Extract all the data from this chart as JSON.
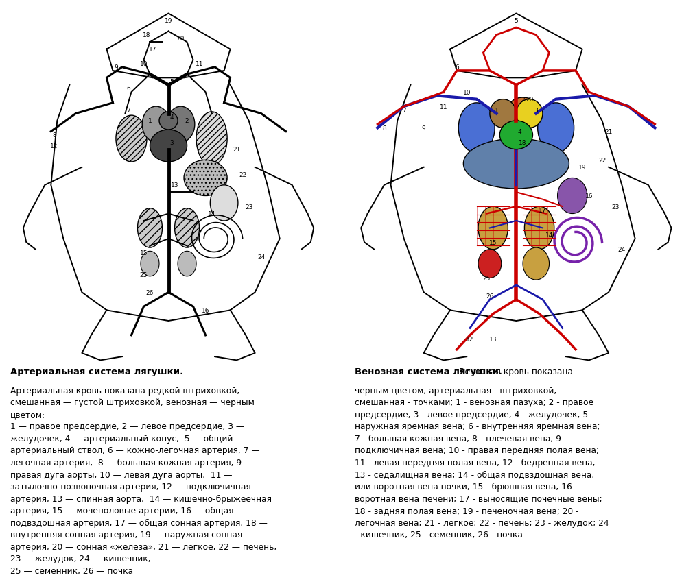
{
  "bg_color": "#ffffff",
  "left_title_bold": "Артериальная система лягушки.",
  "left_text_normal": "Артериальная кровь показана редкой штриховкой,\nсмешанная — густой штриховкой, венозная — черным\nцветом:\n1 — правое предсердие, 2 — левое предсердие, 3 —\nжелудочек, 4 — артериальный конус,  5 — общий\nартериальный ствол, 6 — кожно-легочная артерия, 7 —\nлегочная артерия,  8 — большая кожная артерия, 9 —\nправая дуга аорты, 10 — левая дуга аорты,  11 —\nзатылочно-позвоночная артерия, 12 — подключичная\nартерия, 13 — спинная аорта,  14 — кишечно-брыжеечная\nартерия, 15 — мочеполовые артерии, 16 — общая\nподвздошная артерия, 17 — общая сонная артерия, 18 —\nвнутренняя сонная артерия, 19 — наружная сонная\nартерия, 20 — сонная «железа», 21 — легкое, 22 — печень,\n23 — желудок, 24 — кишечник,\n25 — семенник, 26 — почка",
  "right_title_bold": "Венозная система лягушки.",
  "right_text_normal": "Венозная кровь показана\nчерным цветом, артериальная - штриховкой,\nсмешанная - точками; 1 - венозная пазуха; 2 - правое\nпредсердие; 3 - левое предсердие; 4 - желудочек; 5 -\nнаружная яремная вена; 6 - внутренняя яремная вена;\n7 - большая кожная вена; 8 - плечевая вена; 9 -\nподключичная вена; 10 - правая передняя полая вена;\n11 - левая передняя полая вена; 12 - бедренная вена;\n13 - седалищная вена; 14 - общая подвздошная вена,\nили воротная вена почки; 15 - брюшная вена; 16 -\nворотная вена печени; 17 - выносящие почечные вены;\n18 - задняя полая вена; 19 - печеночная вена; 20 -\nлегочная вена; 21 - легкое; 22 - печень; 23 - желудок; 24\n- кишечник; 25 - семенник; 26 - почка"
}
